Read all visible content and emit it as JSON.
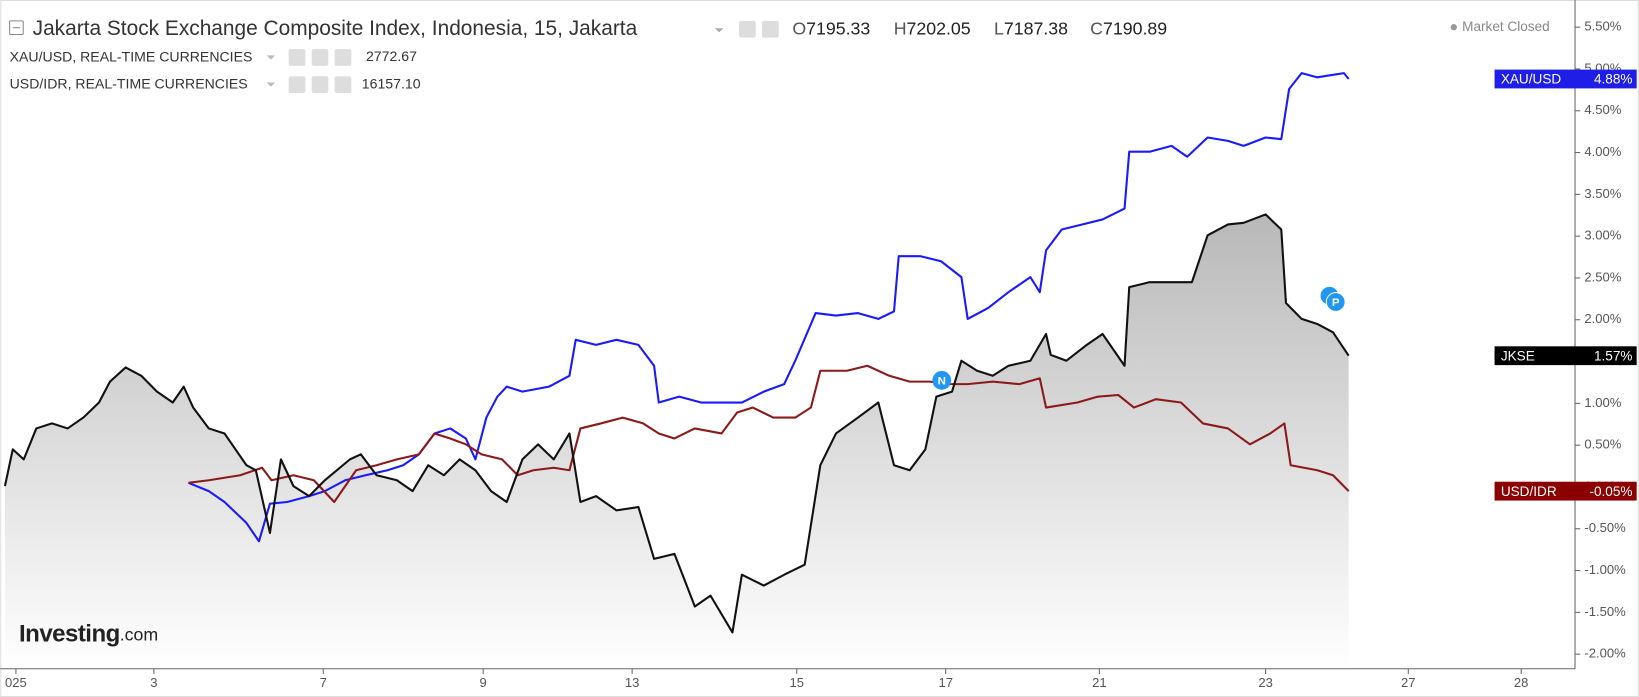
{
  "chart_data": {
    "type": "line",
    "title": "Jakarta Stock Exchange Composite Index, Indonesia, 15, Jakarta",
    "ohlc": [
      {
        "label": "O",
        "value": "7195.33"
      },
      {
        "label": "H",
        "value": "7202.05"
      },
      {
        "label": "L",
        "value": "7187.38"
      },
      {
        "label": "C",
        "value": "7190.89"
      }
    ],
    "status": "Market Closed",
    "logo": {
      "main": "Investing",
      "suffix": ".com"
    },
    "events": [
      "N",
      "P"
    ],
    "xlim": [
      0,
      10.03
    ],
    "ylim": [
      -2.175,
      5.775
    ],
    "grid": false,
    "xticks": [
      {
        "value": 0.1,
        "label": "025"
      },
      {
        "value": 0.98,
        "label": "3"
      },
      {
        "value": 2.06,
        "label": "7"
      },
      {
        "value": 3.08,
        "label": "9"
      },
      {
        "value": 4.03,
        "label": "13"
      },
      {
        "value": 5.08,
        "label": "15"
      },
      {
        "value": 6.03,
        "label": "17"
      },
      {
        "value": 7.01,
        "label": "21"
      },
      {
        "value": 8.07,
        "label": "23"
      },
      {
        "value": 8.98,
        "label": "27"
      },
      {
        "value": 9.7,
        "label": "28"
      }
    ],
    "yticks": [
      {
        "value": 5.5,
        "label": "5.50%"
      },
      {
        "value": 5,
        "label": "5.00%"
      },
      {
        "value": 4.5,
        "label": "4.50%"
      },
      {
        "value": 4,
        "label": "4.00%"
      },
      {
        "value": 3.5,
        "label": "3.50%"
      },
      {
        "value": 3,
        "label": "3.00%"
      },
      {
        "value": 2.5,
        "label": "2.50%"
      },
      {
        "value": 2,
        "label": "2.00%"
      },
      {
        "value": 1.5,
        "label": "1.50%"
      },
      {
        "value": 1,
        "label": "1.00%"
      },
      {
        "value": 0.5,
        "label": "0.50%"
      },
      {
        "value": 0,
        "label": "0.00%"
      },
      {
        "value": -0.5,
        "label": "-0.50%"
      },
      {
        "value": -1,
        "label": "-1.00%"
      },
      {
        "value": -1.5,
        "label": "-1.50%"
      },
      {
        "value": -2,
        "label": "-2.00%"
      }
    ],
    "series": [
      {
        "name": "XAU/USD",
        "legend_suffix": ", REAL-TIME CURRENCIES",
        "price": "2772.67",
        "color": "#1a1aff",
        "label_color": "#1e1ee6",
        "last_label": "4.88%",
        "area": false,
        "x": [
          1.2,
          1.33,
          1.43,
          1.57,
          1.65,
          1.72,
          1.83,
          1.97,
          2.07,
          2.2,
          2.33,
          2.47,
          2.57,
          2.67,
          2.77,
          2.87,
          2.97,
          3.03,
          3.1,
          3.17,
          3.23,
          3.33,
          3.5,
          3.63,
          3.67,
          3.8,
          3.93,
          4.07,
          4.17,
          4.2,
          4.33,
          4.47,
          4.6,
          4.73,
          4.87,
          5.0,
          5.07,
          5.2,
          5.33,
          5.47,
          5.6,
          5.7,
          5.73,
          5.87,
          6.0,
          6.13,
          6.17,
          6.3,
          6.43,
          6.57,
          6.63,
          6.67,
          6.77,
          6.9,
          7.03,
          7.17,
          7.2,
          7.33,
          7.47,
          7.57,
          7.7,
          7.83,
          7.93,
          8.07,
          8.17,
          8.22,
          8.3,
          8.4,
          8.5,
          8.57,
          8.6
        ],
        "values": [
          0.05,
          -0.05,
          -0.18,
          -0.43,
          -0.65,
          -0.2,
          -0.18,
          -0.11,
          -0.05,
          0.08,
          0.14,
          0.2,
          0.26,
          0.39,
          0.64,
          0.7,
          0.58,
          0.33,
          0.83,
          1.08,
          1.2,
          1.14,
          1.2,
          1.33,
          1.76,
          1.7,
          1.76,
          1.7,
          1.45,
          1.01,
          1.08,
          1.01,
          1.01,
          1.01,
          1.14,
          1.23,
          1.51,
          2.08,
          2.05,
          2.08,
          2.01,
          2.1,
          2.76,
          2.76,
          2.7,
          2.51,
          2.01,
          2.14,
          2.33,
          2.51,
          2.33,
          2.83,
          3.08,
          3.14,
          3.2,
          3.33,
          4.01,
          4.01,
          4.08,
          3.95,
          4.18,
          4.14,
          4.08,
          4.18,
          4.16,
          4.76,
          4.95,
          4.9,
          4.93,
          4.95,
          4.88
        ]
      },
      {
        "name": "USD/IDR",
        "legend_suffix": ", REAL-TIME CURRENCIES",
        "price": "16157.10",
        "color": "#8b1a1a",
        "label_color": "#8b0000",
        "last_label": "-0.05%",
        "area": false,
        "x": [
          1.2,
          1.33,
          1.53,
          1.67,
          1.73,
          1.87,
          2.0,
          2.13,
          2.27,
          2.4,
          2.53,
          2.67,
          2.77,
          2.87,
          2.97,
          3.07,
          3.2,
          3.3,
          3.4,
          3.53,
          3.63,
          3.7,
          3.83,
          3.97,
          4.1,
          4.2,
          4.3,
          4.43,
          4.6,
          4.7,
          4.8,
          4.93,
          5.07,
          5.17,
          5.23,
          5.4,
          5.53,
          5.67,
          5.8,
          5.93,
          6.03,
          6.17,
          6.33,
          6.5,
          6.63,
          6.67,
          6.87,
          7.0,
          7.13,
          7.23,
          7.37,
          7.53,
          7.67,
          7.83,
          7.97,
          8.1,
          8.19,
          8.23,
          8.4,
          8.5,
          8.6
        ],
        "values": [
          0.05,
          0.08,
          0.14,
          0.23,
          0.08,
          0.14,
          0.08,
          -0.18,
          0.2,
          0.26,
          0.33,
          0.39,
          0.64,
          0.58,
          0.51,
          0.39,
          0.33,
          0.14,
          0.2,
          0.23,
          0.2,
          0.7,
          0.76,
          0.83,
          0.76,
          0.64,
          0.58,
          0.7,
          0.64,
          0.89,
          0.95,
          0.83,
          0.83,
          0.95,
          1.39,
          1.39,
          1.45,
          1.33,
          1.26,
          1.26,
          1.23,
          1.23,
          1.26,
          1.23,
          1.3,
          0.95,
          1.01,
          1.08,
          1.1,
          0.95,
          1.05,
          1.01,
          0.76,
          0.7,
          0.51,
          0.64,
          0.76,
          0.26,
          0.2,
          0.14,
          -0.05
        ]
      },
      {
        "name": "JKSE",
        "color": "#111111",
        "label_color": "#000000",
        "last_label": "1.57%",
        "area": true,
        "x": [
          0.03,
          0.08,
          0.15,
          0.23,
          0.33,
          0.43,
          0.53,
          0.63,
          0.7,
          0.8,
          0.9,
          1.0,
          1.1,
          1.17,
          1.23,
          1.33,
          1.43,
          1.57,
          1.63,
          1.72,
          1.79,
          1.87,
          1.97,
          2.07,
          2.23,
          2.3,
          2.4,
          2.53,
          2.63,
          2.73,
          2.83,
          2.93,
          3.03,
          3.13,
          3.23,
          3.33,
          3.43,
          3.53,
          3.63,
          3.7,
          3.8,
          3.93,
          4.07,
          4.17,
          4.3,
          4.43,
          4.53,
          4.67,
          4.73,
          4.87,
          5.0,
          5.13,
          5.23,
          5.33,
          5.47,
          5.6,
          5.7,
          5.8,
          5.9,
          5.97,
          6.07,
          6.13,
          6.23,
          6.33,
          6.43,
          6.57,
          6.67,
          6.7,
          6.8,
          6.93,
          7.03,
          7.17,
          7.2,
          7.33,
          7.47,
          7.6,
          7.7,
          7.83,
          7.93,
          8.07,
          8.17,
          8.2,
          8.3,
          8.4,
          8.5,
          8.6
        ],
        "values": [
          0.01,
          0.45,
          0.33,
          0.7,
          0.76,
          0.7,
          0.83,
          1.01,
          1.26,
          1.43,
          1.33,
          1.14,
          1.01,
          1.2,
          0.95,
          0.7,
          0.64,
          0.26,
          0.2,
          -0.55,
          0.33,
          0.01,
          -0.11,
          0.08,
          0.33,
          0.39,
          0.14,
          0.08,
          -0.05,
          0.26,
          0.14,
          0.33,
          0.2,
          -0.05,
          -0.18,
          0.33,
          0.51,
          0.33,
          0.64,
          -0.18,
          -0.11,
          -0.28,
          -0.24,
          -0.86,
          -0.8,
          -1.43,
          -1.3,
          -1.74,
          -1.05,
          -1.18,
          -1.05,
          -0.93,
          0.26,
          0.64,
          0.83,
          1.01,
          0.26,
          0.2,
          0.45,
          1.08,
          1.14,
          1.51,
          1.39,
          1.33,
          1.45,
          1.51,
          1.83,
          1.58,
          1.51,
          1.7,
          1.83,
          1.45,
          2.39,
          2.45,
          2.45,
          2.45,
          3.01,
          3.14,
          3.16,
          3.26,
          3.08,
          2.2,
          2.01,
          1.95,
          1.85,
          1.57
        ]
      }
    ]
  }
}
